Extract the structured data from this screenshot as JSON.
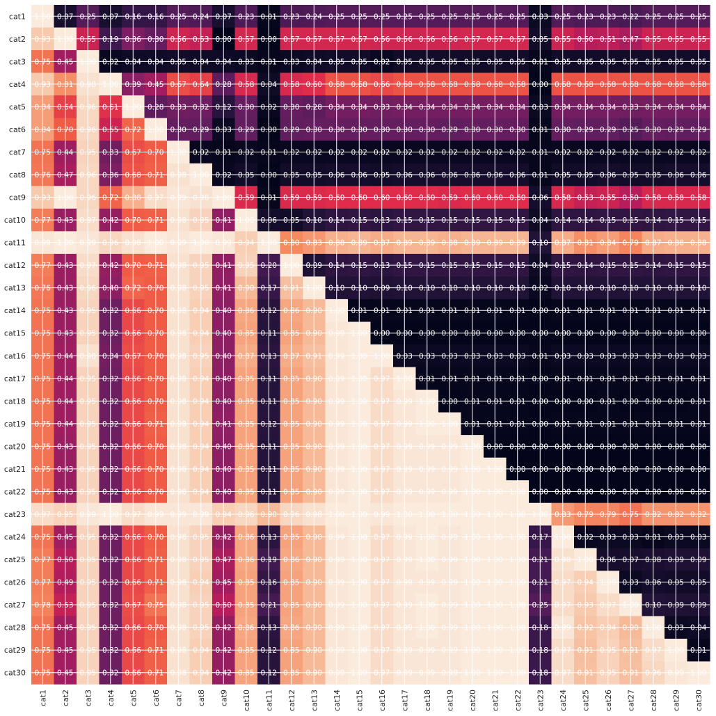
{
  "chart_data": {
    "type": "heatmap",
    "title": "",
    "xlabel": "",
    "ylabel": "",
    "value_range": [
      0,
      1
    ],
    "colormap": "rocket",
    "grid": true,
    "annotation_format": "0.00",
    "categories": [
      "cat1",
      "cat2",
      "cat3",
      "cat4",
      "cat5",
      "cat6",
      "cat7",
      "cat8",
      "cat9",
      "cat10",
      "cat11",
      "cat12",
      "cat13",
      "cat14",
      "cat15",
      "cat16",
      "cat17",
      "cat18",
      "cat19",
      "cat20",
      "cat21",
      "cat22",
      "cat23",
      "cat24",
      "cat25",
      "cat26",
      "cat27",
      "cat28",
      "cat29",
      "cat30"
    ],
    "values": [
      [
        1.0,
        0.07,
        0.25,
        0.07,
        0.16,
        0.16,
        0.25,
        0.24,
        0.07,
        0.23,
        0.01,
        0.23,
        0.24,
        0.25,
        0.25,
        0.25,
        0.25,
        0.25,
        0.25,
        0.25,
        0.25,
        0.25,
        0.03,
        0.25,
        0.23,
        0.23,
        0.22,
        0.25,
        0.25,
        0.25
      ],
      [
        0.93,
        1.0,
        0.55,
        0.19,
        0.36,
        0.3,
        0.56,
        0.53,
        0.0,
        0.57,
        0.0,
        0.57,
        0.57,
        0.57,
        0.57,
        0.56,
        0.56,
        0.56,
        0.56,
        0.57,
        0.57,
        0.57,
        0.05,
        0.55,
        0.5,
        0.51,
        0.47,
        0.55,
        0.55,
        0.55
      ],
      [
        0.75,
        0.45,
        1.0,
        0.02,
        0.04,
        0.04,
        0.05,
        0.04,
        0.04,
        0.03,
        0.01,
        0.03,
        0.04,
        0.05,
        0.05,
        0.02,
        0.05,
        0.05,
        0.05,
        0.05,
        0.05,
        0.05,
        0.01,
        0.05,
        0.05,
        0.05,
        0.05,
        0.05,
        0.05,
        0.05
      ],
      [
        0.93,
        0.81,
        0.98,
        1.0,
        0.39,
        0.45,
        0.67,
        0.64,
        0.28,
        0.58,
        0.04,
        0.58,
        0.6,
        0.68,
        0.68,
        0.66,
        0.68,
        0.68,
        0.68,
        0.68,
        0.68,
        0.68,
        0.0,
        0.68,
        0.68,
        0.68,
        0.68,
        0.68,
        0.68,
        0.68
      ],
      [
        0.84,
        0.64,
        0.96,
        0.61,
        1.0,
        0.28,
        0.33,
        0.32,
        0.12,
        0.3,
        0.02,
        0.3,
        0.28,
        0.34,
        0.34,
        0.33,
        0.34,
        0.34,
        0.34,
        0.34,
        0.34,
        0.34,
        0.03,
        0.34,
        0.34,
        0.34,
        0.33,
        0.34,
        0.34,
        0.34
      ],
      [
        0.84,
        0.7,
        0.96,
        0.55,
        0.72,
        1.0,
        0.3,
        0.29,
        0.03,
        0.29,
        0.0,
        0.29,
        0.3,
        0.3,
        0.3,
        0.3,
        0.3,
        0.3,
        0.29,
        0.3,
        0.3,
        0.3,
        0.01,
        0.3,
        0.29,
        0.29,
        0.25,
        0.3,
        0.29,
        0.29
      ],
      [
        0.75,
        0.44,
        0.95,
        0.33,
        0.67,
        0.7,
        1.0,
        0.02,
        0.01,
        0.02,
        0.01,
        0.02,
        0.02,
        0.02,
        0.02,
        0.02,
        0.02,
        0.02,
        0.02,
        0.02,
        0.02,
        0.02,
        0.01,
        0.02,
        0.02,
        0.02,
        0.02,
        0.02,
        0.02,
        0.02
      ],
      [
        0.76,
        0.47,
        0.96,
        0.36,
        0.68,
        0.71,
        0.98,
        1.0,
        0.02,
        0.05,
        0.0,
        0.05,
        0.05,
        0.06,
        0.06,
        0.05,
        0.06,
        0.06,
        0.06,
        0.06,
        0.06,
        0.06,
        0.01,
        0.05,
        0.05,
        0.06,
        0.05,
        0.05,
        0.06,
        0.06
      ],
      [
        0.93,
        1.0,
        0.96,
        0.72,
        0.88,
        0.97,
        0.99,
        0.98,
        1.0,
        0.59,
        0.01,
        0.59,
        0.59,
        0.6,
        0.6,
        0.6,
        0.6,
        0.6,
        0.59,
        0.6,
        0.6,
        0.6,
        0.06,
        0.58,
        0.53,
        0.55,
        0.5,
        0.58,
        0.58,
        0.58
      ],
      [
        0.77,
        0.43,
        0.97,
        0.42,
        0.7,
        0.71,
        0.98,
        0.95,
        0.41,
        1.0,
        0.06,
        0.05,
        0.1,
        0.14,
        0.15,
        0.13,
        0.15,
        0.15,
        0.15,
        0.15,
        0.15,
        0.15,
        0.04,
        0.14,
        0.14,
        0.15,
        0.15,
        0.14,
        0.15,
        0.15
      ],
      [
        0.99,
        1.0,
        0.99,
        0.96,
        0.98,
        1.0,
        0.99,
        1.0,
        0.99,
        0.94,
        1.0,
        0.8,
        0.83,
        0.88,
        0.89,
        0.87,
        0.89,
        0.89,
        0.88,
        0.89,
        0.89,
        0.89,
        0.1,
        0.87,
        0.81,
        0.84,
        0.79,
        0.87,
        0.88,
        0.88
      ],
      [
        0.77,
        0.43,
        0.97,
        0.42,
        0.7,
        0.71,
        0.98,
        0.95,
        0.41,
        0.95,
        0.2,
        1.0,
        0.09,
        0.14,
        0.15,
        0.13,
        0.15,
        0.15,
        0.15,
        0.15,
        0.15,
        0.15,
        0.04,
        0.15,
        0.14,
        0.15,
        0.15,
        0.14,
        0.15,
        0.15
      ],
      [
        0.76,
        0.43,
        0.96,
        0.4,
        0.72,
        0.7,
        0.98,
        0.95,
        0.41,
        0.9,
        0.17,
        0.91,
        1.0,
        0.1,
        0.1,
        0.09,
        0.1,
        0.1,
        0.1,
        0.1,
        0.1,
        0.1,
        0.02,
        0.1,
        0.1,
        0.1,
        0.1,
        0.1,
        0.1,
        0.1
      ],
      [
        0.75,
        0.43,
        0.95,
        0.32,
        0.66,
        0.7,
        0.98,
        0.94,
        0.4,
        0.86,
        0.12,
        0.86,
        0.9,
        1.0,
        0.01,
        0.01,
        0.01,
        0.01,
        0.01,
        0.01,
        0.01,
        0.01,
        0.0,
        0.01,
        0.01,
        0.01,
        0.01,
        0.01,
        0.01,
        0.01
      ],
      [
        0.75,
        0.43,
        0.95,
        0.32,
        0.66,
        0.7,
        0.98,
        0.94,
        0.4,
        0.85,
        0.11,
        0.85,
        0.9,
        0.99,
        1.0,
        0.0,
        0.0,
        0.0,
        0.0,
        0.0,
        0.0,
        0.0,
        0.0,
        0.0,
        0.0,
        0.0,
        0.0,
        0.0,
        0.0,
        0.0
      ],
      [
        0.75,
        0.44,
        0.98,
        0.34,
        0.67,
        0.7,
        0.98,
        0.95,
        0.4,
        0.87,
        0.13,
        0.87,
        0.91,
        0.99,
        1.0,
        1.0,
        0.03,
        0.03,
        0.03,
        0.03,
        0.03,
        0.03,
        0.01,
        0.03,
        0.03,
        0.03,
        0.03,
        0.03,
        0.03,
        0.03
      ],
      [
        0.75,
        0.44,
        0.95,
        0.32,
        0.66,
        0.7,
        0.98,
        0.94,
        0.4,
        0.85,
        0.11,
        0.85,
        0.9,
        0.99,
        1.0,
        0.97,
        1.0,
        0.01,
        0.01,
        0.01,
        0.01,
        0.01,
        0.0,
        0.01,
        0.01,
        0.01,
        0.01,
        0.01,
        0.01,
        0.01
      ],
      [
        0.75,
        0.44,
        0.95,
        0.32,
        0.66,
        0.7,
        0.98,
        0.94,
        0.4,
        0.85,
        0.11,
        0.85,
        0.9,
        0.99,
        1.0,
        0.97,
        0.99,
        1.0,
        0.0,
        0.01,
        0.01,
        0.01,
        0.0,
        0.0,
        0.0,
        0.01,
        0.0,
        0.0,
        0.0,
        0.01
      ],
      [
        0.75,
        0.44,
        0.95,
        0.32,
        0.66,
        0.71,
        0.98,
        0.94,
        0.41,
        0.85,
        0.12,
        0.85,
        0.9,
        0.99,
        1.0,
        0.97,
        0.99,
        1.0,
        1.0,
        0.01,
        0.01,
        0.01,
        0.0,
        0.01,
        0.01,
        0.01,
        0.01,
        0.01,
        0.01,
        0.01
      ],
      [
        0.75,
        0.43,
        0.95,
        0.32,
        0.66,
        0.7,
        0.98,
        0.94,
        0.4,
        0.85,
        0.11,
        0.85,
        0.9,
        0.99,
        1.0,
        0.97,
        0.99,
        0.99,
        0.99,
        1.0,
        0.0,
        0.0,
        0.0,
        0.0,
        0.0,
        0.0,
        0.0,
        0.0,
        0.0,
        0.0
      ],
      [
        0.75,
        0.43,
        0.95,
        0.32,
        0.66,
        0.7,
        0.98,
        0.94,
        0.4,
        0.85,
        0.11,
        0.85,
        0.9,
        0.99,
        1.0,
        0.97,
        0.99,
        0.99,
        0.99,
        1.0,
        1.0,
        0.0,
        0.0,
        0.0,
        0.0,
        0.0,
        0.0,
        0.0,
        0.0,
        0.0
      ],
      [
        0.75,
        0.43,
        0.95,
        0.32,
        0.66,
        0.7,
        0.98,
        0.94,
        0.4,
        0.85,
        0.11,
        0.85,
        0.9,
        0.99,
        1.0,
        0.97,
        0.99,
        0.99,
        0.99,
        1.0,
        1.0,
        1.0,
        0.0,
        0.0,
        0.0,
        0.0,
        0.0,
        0.0,
        0.0,
        0.0
      ],
      [
        0.97,
        0.95,
        0.99,
        1.0,
        0.97,
        0.99,
        0.99,
        0.99,
        0.94,
        0.96,
        0.9,
        0.96,
        0.98,
        1.0,
        1.0,
        0.99,
        1.0,
        1.0,
        1.0,
        1.0,
        1.0,
        1.0,
        1.0,
        0.83,
        0.79,
        0.79,
        0.75,
        0.82,
        0.82,
        0.82
      ],
      [
        0.75,
        0.45,
        0.95,
        0.32,
        0.66,
        0.7,
        0.98,
        0.95,
        0.42,
        0.86,
        0.13,
        0.85,
        0.9,
        0.99,
        1.0,
        0.97,
        0.99,
        1.0,
        0.99,
        1.0,
        1.0,
        1.0,
        0.17,
        1.0,
        0.02,
        0.03,
        0.03,
        0.01,
        0.03,
        0.03
      ],
      [
        0.77,
        0.5,
        0.95,
        0.32,
        0.66,
        0.71,
        0.98,
        0.95,
        0.47,
        0.86,
        0.19,
        0.86,
        0.9,
        0.99,
        1.0,
        0.97,
        0.99,
        1.0,
        0.99,
        1.0,
        1.0,
        1.0,
        0.21,
        0.98,
        1.0,
        0.06,
        0.07,
        0.08,
        0.09,
        0.09
      ],
      [
        0.77,
        0.49,
        0.95,
        0.32,
        0.66,
        0.71,
        0.98,
        0.94,
        0.45,
        0.85,
        0.16,
        0.85,
        0.9,
        0.99,
        1.0,
        0.97,
        0.99,
        0.99,
        0.99,
        1.0,
        1.0,
        1.0,
        0.21,
        0.97,
        0.94,
        1.0,
        0.03,
        0.06,
        0.05,
        0.05
      ],
      [
        0.78,
        0.53,
        0.95,
        0.32,
        0.67,
        0.75,
        0.98,
        0.95,
        0.5,
        0.85,
        0.21,
        0.85,
        0.9,
        0.99,
        1.0,
        0.97,
        0.99,
        1.0,
        0.99,
        1.0,
        1.0,
        1.0,
        0.25,
        0.97,
        0.93,
        0.97,
        1.0,
        0.1,
        0.09,
        0.09
      ],
      [
        0.75,
        0.45,
        0.95,
        0.32,
        0.66,
        0.7,
        0.98,
        0.95,
        0.42,
        0.86,
        0.13,
        0.86,
        0.9,
        0.99,
        1.0,
        0.97,
        0.99,
        1.0,
        0.99,
        1.0,
        1.0,
        1.0,
        0.18,
        0.99,
        0.92,
        0.94,
        0.9,
        1.0,
        0.03,
        0.04
      ],
      [
        0.75,
        0.45,
        0.95,
        0.32,
        0.66,
        0.71,
        0.98,
        0.94,
        0.42,
        0.85,
        0.12,
        0.85,
        0.9,
        0.99,
        1.0,
        0.97,
        0.99,
        0.99,
        0.99,
        1.0,
        1.0,
        1.0,
        0.18,
        0.97,
        0.91,
        0.95,
        0.91,
        0.97,
        1.0,
        0.01
      ],
      [
        0.75,
        0.45,
        0.95,
        0.32,
        0.66,
        0.71,
        0.98,
        0.94,
        0.42,
        0.85,
        0.12,
        0.85,
        0.9,
        0.99,
        1.0,
        0.97,
        0.99,
        0.99,
        0.99,
        1.0,
        1.0,
        1.0,
        0.18,
        0.97,
        0.91,
        0.95,
        0.91,
        0.96,
        0.99,
        1.0
      ]
    ]
  }
}
